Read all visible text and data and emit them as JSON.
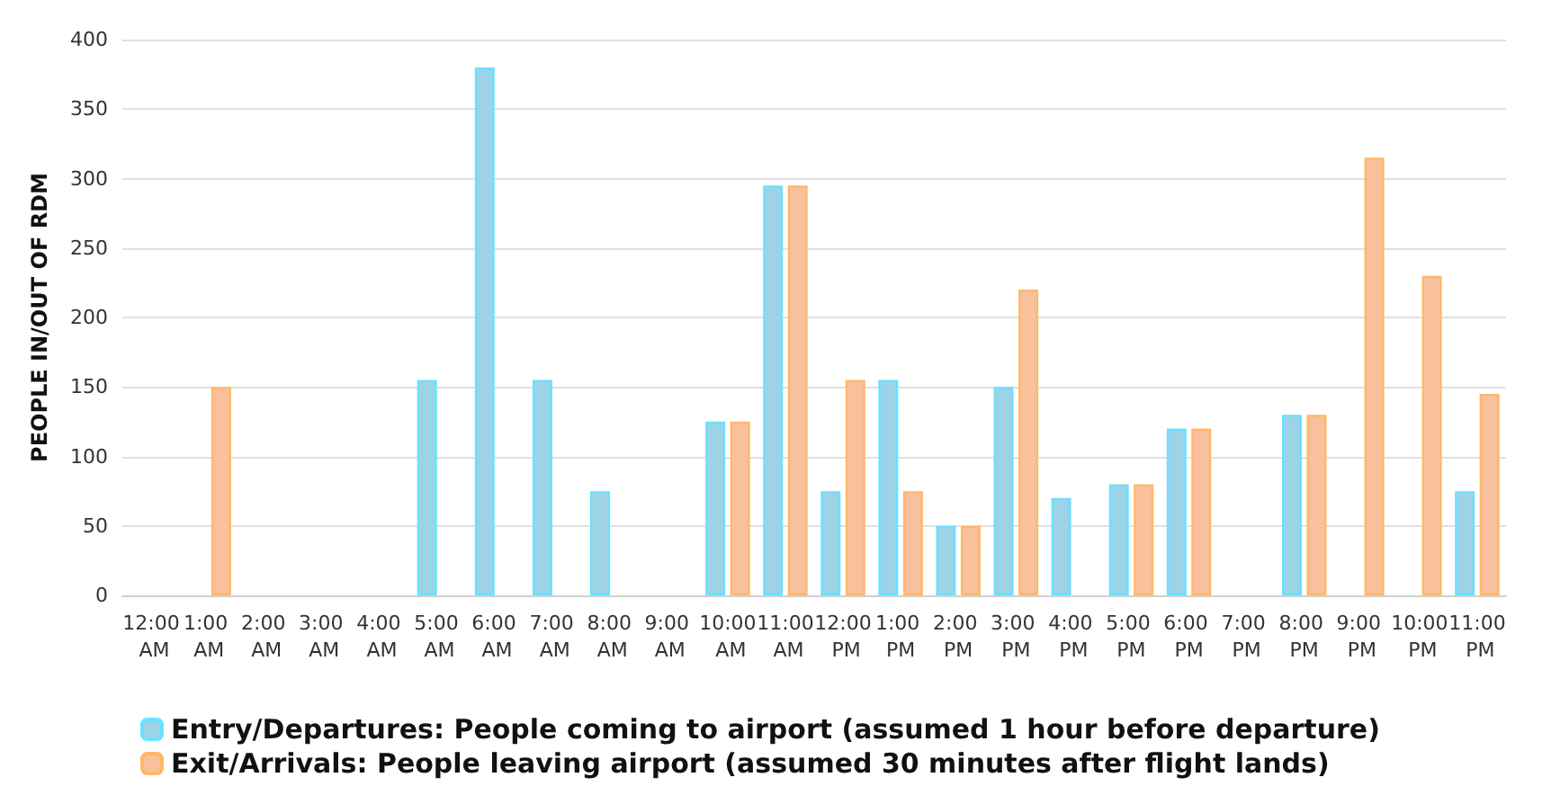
{
  "chart_data": {
    "type": "bar",
    "ylabel": "PEOPLE IN/OUT OF RDM",
    "categories": [
      "12:00 AM",
      "1:00 AM",
      "2:00 AM",
      "3:00 AM",
      "4:00 AM",
      "5:00 AM",
      "6:00 AM",
      "7:00 AM",
      "8:00 AM",
      "9:00 AM",
      "10:00 AM",
      "11:00 AM",
      "12:00 PM",
      "1:00 PM",
      "2:00 PM",
      "3:00 PM",
      "4:00 PM",
      "5:00 PM",
      "6:00 PM",
      "7:00 PM",
      "8:00 PM",
      "9:00 PM",
      "10:00 PM",
      "11:00 PM"
    ],
    "series": [
      {
        "name": "Entry/Departures: People coming to airport (assumed 1 hour before departure)",
        "color": "#9dd3e6",
        "values": [
          null,
          null,
          null,
          null,
          null,
          155,
          380,
          155,
          75,
          null,
          125,
          295,
          75,
          155,
          50,
          150,
          70,
          80,
          120,
          null,
          130,
          null,
          null,
          75
        ]
      },
      {
        "name": "Exit/Arrivals: People leaving airport (assumed 30 minutes after flight lands)",
        "color": "#f9c09c",
        "values": [
          null,
          150,
          null,
          null,
          null,
          null,
          null,
          null,
          null,
          null,
          125,
          295,
          155,
          75,
          50,
          220,
          null,
          80,
          120,
          null,
          130,
          315,
          230,
          145
        ]
      }
    ],
    "ylim": [
      0,
      400
    ],
    "yticks": [
      0,
      50,
      100,
      150,
      200,
      250,
      300,
      350,
      400
    ],
    "grid": "y",
    "legend": "bottom"
  }
}
